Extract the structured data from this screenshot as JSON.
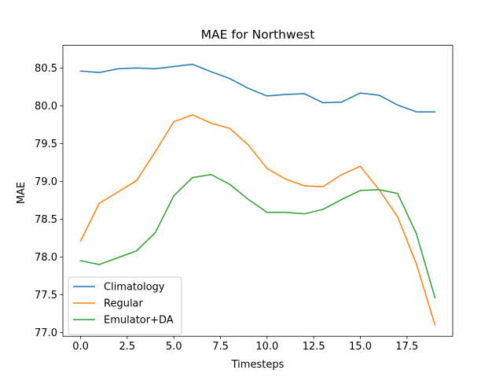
{
  "chart_data": {
    "type": "line",
    "title": "MAE for Northwest",
    "xlabel": "Timesteps",
    "ylabel": "MAE",
    "xlim": [
      -0.95,
      19.95
    ],
    "ylim": [
      76.95,
      80.8
    ],
    "xticks": [
      0.0,
      2.5,
      5.0,
      7.5,
      10.0,
      12.5,
      15.0,
      17.5
    ],
    "xtick_labels": [
      "0.0",
      "2.5",
      "5.0",
      "7.5",
      "10.0",
      "12.5",
      "15.0",
      "17.5"
    ],
    "yticks": [
      77.0,
      77.5,
      78.0,
      78.5,
      79.0,
      79.5,
      80.0,
      80.5
    ],
    "ytick_labels": [
      "77.0",
      "77.5",
      "78.0",
      "78.5",
      "79.0",
      "79.5",
      "80.0",
      "80.5"
    ],
    "grid": false,
    "legend_position": "lower-left",
    "x": [
      0,
      1,
      2,
      3,
      4,
      5,
      6,
      7,
      8,
      9,
      10,
      11,
      12,
      13,
      14,
      15,
      16,
      17,
      18,
      19
    ],
    "series": [
      {
        "name": "Climatology",
        "color": "#1f77b4",
        "values": [
          80.46,
          80.44,
          80.49,
          80.5,
          80.49,
          80.52,
          80.55,
          80.45,
          80.36,
          80.23,
          80.13,
          80.15,
          80.16,
          80.04,
          80.05,
          80.17,
          80.14,
          80.01,
          79.92,
          79.92
        ]
      },
      {
        "name": "Regular",
        "color": "#ff7f0e",
        "values": [
          78.21,
          78.71,
          78.86,
          79.01,
          79.39,
          79.79,
          79.88,
          79.77,
          79.7,
          79.48,
          79.17,
          79.03,
          78.94,
          78.93,
          79.09,
          79.2,
          78.89,
          78.53,
          77.91,
          77.1
        ]
      },
      {
        "name": "Emulator+DA",
        "color": "#2ca02c",
        "values": [
          77.95,
          77.9,
          77.99,
          78.08,
          78.32,
          78.81,
          79.05,
          79.09,
          78.96,
          78.76,
          78.59,
          78.59,
          78.57,
          78.63,
          78.76,
          78.88,
          78.89,
          78.84,
          78.31,
          77.46
        ]
      }
    ]
  }
}
